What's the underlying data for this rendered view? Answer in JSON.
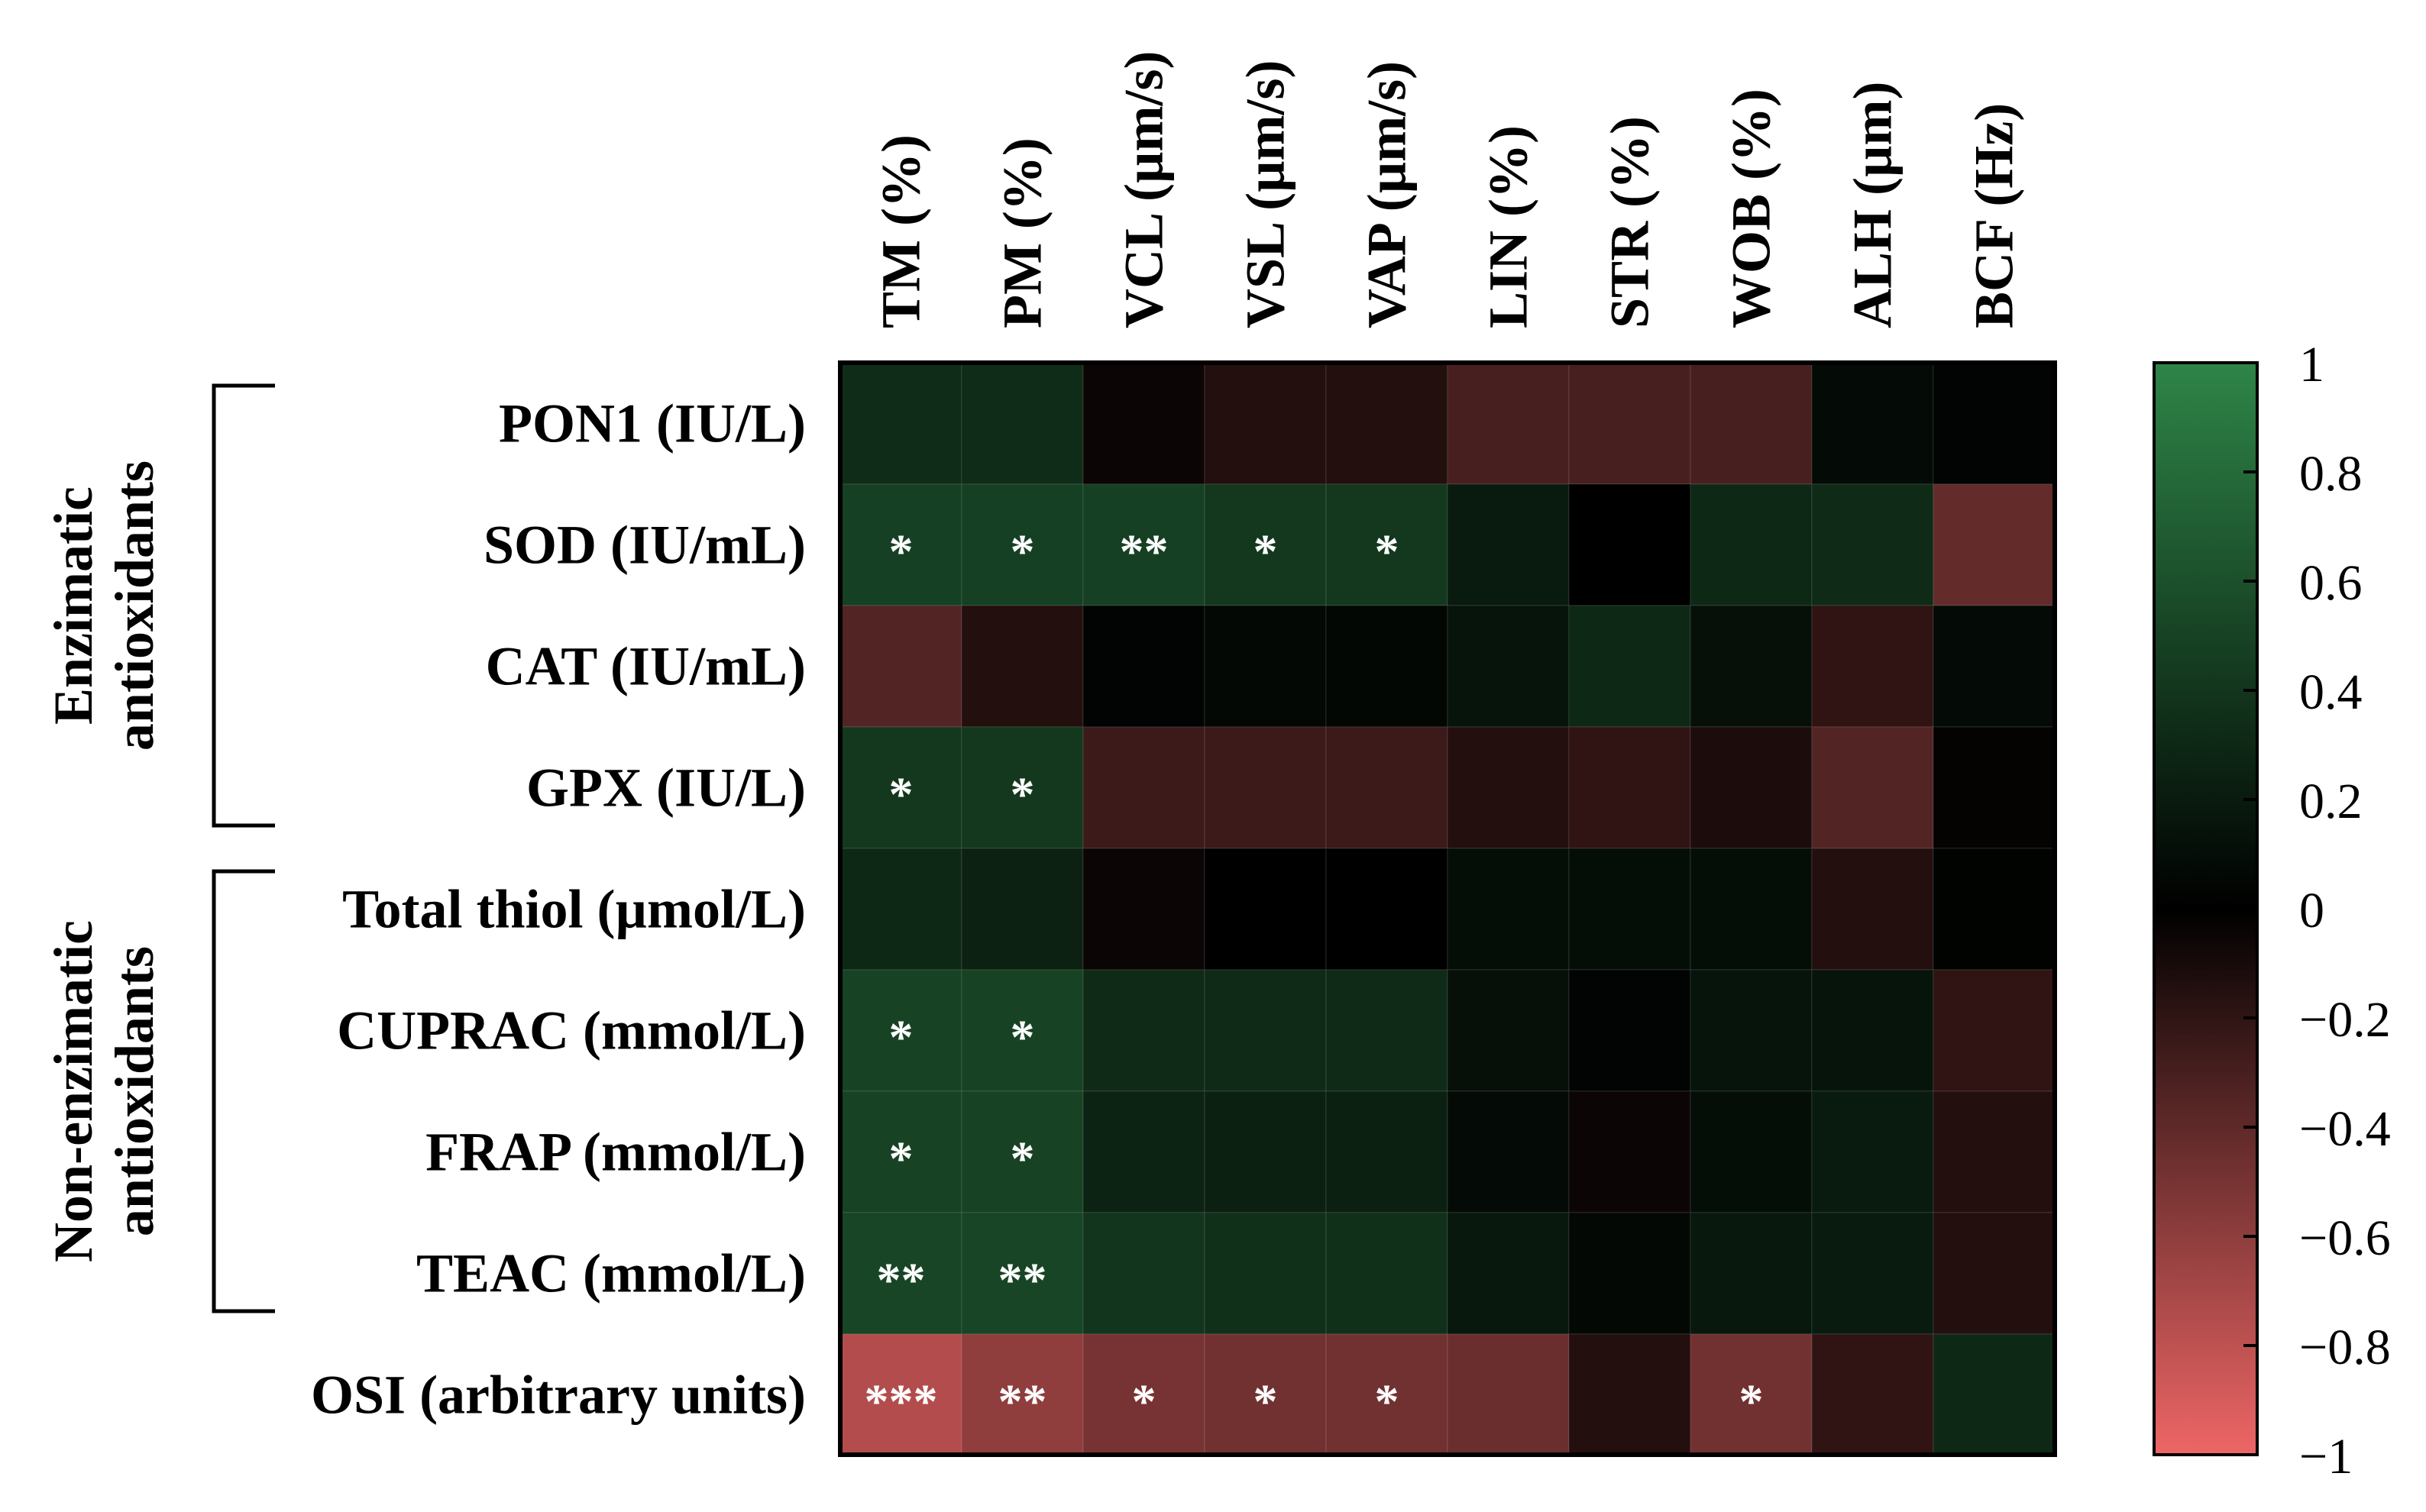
{
  "chart_data": {
    "type": "heatmap",
    "title": "",
    "columns": [
      "TM (%)",
      "PM (%)",
      "VCL (µm/s)",
      "VSL (µm/s)",
      "VAP (µm/s)",
      "LIN (%)",
      "STR (%)",
      "WOB (%)",
      "ALH (µm)",
      "BCF (Hz)"
    ],
    "rows": [
      "PON1 (IU/L)",
      "SOD (IU/mL)",
      "CAT (IU/mL)",
      "GPX (IU/L)",
      "Total thiol (µmol/L)",
      "CUPRAC (mmol/L)",
      "FRAP (mmol/L)",
      "TEAC (mmol/L)",
      "OSI (arbitrary units)"
    ],
    "groups": [
      {
        "label_lines": [
          "Enzimatic",
          "antioxidants"
        ],
        "row_start": 0,
        "row_end": 3
      },
      {
        "label_lines": [
          "Non-enzimatic",
          "antioxidants"
        ],
        "row_start": 4,
        "row_end": 7
      }
    ],
    "values": [
      [
        0.33,
        0.33,
        -0.05,
        -0.15,
        -0.15,
        -0.3,
        -0.3,
        -0.3,
        0.08,
        0.03
      ],
      [
        0.48,
        0.48,
        0.48,
        0.42,
        0.42,
        0.2,
        0.0,
        0.3,
        0.32,
        -0.42
      ],
      [
        -0.35,
        -0.15,
        0.03,
        0.06,
        0.05,
        0.15,
        0.3,
        0.12,
        -0.2,
        0.08
      ],
      [
        0.42,
        0.42,
        -0.25,
        -0.25,
        -0.25,
        -0.15,
        -0.2,
        -0.12,
        -0.35,
        -0.02
      ],
      [
        0.3,
        0.25,
        -0.05,
        0.0,
        0.0,
        0.1,
        0.1,
        0.1,
        -0.15,
        0.02
      ],
      [
        0.5,
        0.5,
        0.32,
        0.32,
        0.32,
        0.12,
        0.03,
        0.15,
        0.15,
        -0.2
      ],
      [
        0.5,
        0.5,
        0.26,
        0.24,
        0.24,
        0.08,
        -0.05,
        0.1,
        0.2,
        -0.15
      ],
      [
        0.52,
        0.52,
        0.4,
        0.36,
        0.36,
        0.18,
        0.06,
        0.18,
        0.2,
        -0.15
      ],
      [
        -0.75,
        -0.6,
        -0.5,
        -0.48,
        -0.48,
        -0.45,
        -0.15,
        -0.48,
        -0.2,
        0.3
      ]
    ],
    "significance": [
      [
        "",
        "",
        "",
        "",
        "",
        "",
        "",
        "",
        "",
        ""
      ],
      [
        "*",
        "*",
        "**",
        "*",
        "*",
        "",
        "",
        "",
        "",
        ""
      ],
      [
        "",
        "",
        "",
        "",
        "",
        "",
        "",
        "",
        "",
        ""
      ],
      [
        "*",
        "*",
        "",
        "",
        "",
        "",
        "",
        "",
        "",
        ""
      ],
      [
        "",
        "",
        "",
        "",
        "",
        "",
        "",
        "",
        "",
        ""
      ],
      [
        "*",
        "*",
        "",
        "",
        "",
        "",
        "",
        "",
        "",
        ""
      ],
      [
        "*",
        "*",
        "",
        "",
        "",
        "",
        "",
        "",
        "",
        ""
      ],
      [
        "**",
        "**",
        "",
        "",
        "",
        "",
        "",
        "",
        "",
        ""
      ],
      [
        "***",
        "**",
        "*",
        "*",
        "*",
        "",
        "",
        "*",
        "",
        ""
      ]
    ],
    "colorbar": {
      "range": [
        -1,
        1
      ],
      "ticks": [
        1,
        0.8,
        0.6,
        0.4,
        0.2,
        0,
        -0.2,
        -0.4,
        -0.6,
        -0.8,
        -1
      ],
      "tick_labels": [
        "1",
        "0.8",
        "0.6",
        "0.4",
        "0.2",
        "0",
        "−0.2",
        "−0.4",
        "−0.6",
        "−0.8",
        "−1"
      ],
      "color_max": "#2e8548",
      "color_zero": "#000000",
      "color_min": "#ee6666"
    }
  }
}
